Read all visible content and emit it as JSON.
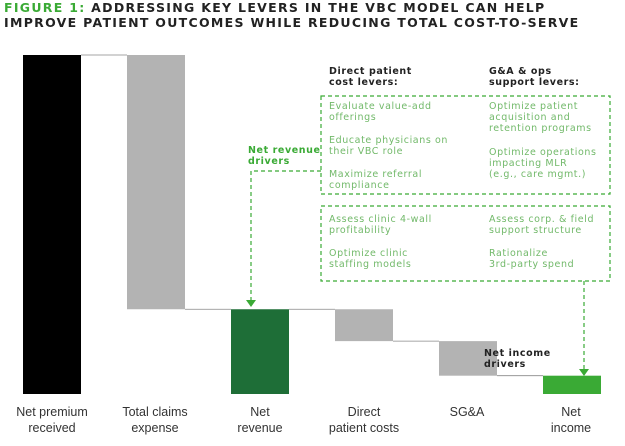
{
  "figure": {
    "label": "FIGURE 1:",
    "title": "ADDRESSING KEY LEVERS IN THE VBC MODEL CAN HELP IMPROVE PATIENT OUTCOMES WHILE REDUCING TOTAL COST-TO-SERVE"
  },
  "colors": {
    "title_accent": "#3aaa35",
    "total_bar": "#000000",
    "expense_bar": "#b3b3b3",
    "net_revenue_bar": "#1e6e37",
    "net_income_bar": "#3aaa35",
    "dashed_line": "#3aaa35",
    "lever_text": "#72b96a"
  },
  "levers": {
    "direct_patient": {
      "heading": "Direct patient\ncost levers:",
      "items": [
        "Evaluate value-add\nofferings",
        "Educate physicians on\ntheir VBC role",
        "Maximize referral\ncompliance",
        "Assess clinic 4-wall\nprofitability",
        "Optimize clinic\nstaffing models"
      ]
    },
    "ga_ops": {
      "heading": "G&A & ops\nsupport levers:",
      "items": [
        "Optimize patient\nacquisition and\nretention programs",
        "Optimize operations\nimpacting MLR\n(e.g., care mgmt.)",
        "Assess corp. & field\nsupport structure",
        "Rationalize\n3rd-party spend"
      ]
    },
    "net_revenue_drivers": "Net revenue\ndrivers",
    "net_income_drivers": "Net income\ndrivers"
  },
  "chart_data": {
    "type": "waterfall",
    "title": "ADDRESSING KEY LEVERS IN THE VBC MODEL CAN HELP IMPROVE PATIENT OUTCOMES WHILE REDUCING TOTAL COST-TO-SERVE",
    "categories": [
      "Net premium\nreceived",
      "Total claims\nexpense",
      "Net\nrevenue",
      "Direct\npatient costs",
      "SG&A",
      "Net\nincome"
    ],
    "values": [
      100,
      -75,
      25,
      -9.4,
      -10.2,
      5.4
    ],
    "kinds": [
      "total",
      "decrease",
      "total",
      "decrease",
      "decrease",
      "total"
    ],
    "y_axis_shown": false,
    "value_labels_shown": false,
    "note": "Illustrative; no axis or values printed. Values estimated as share of net premium (= 100)."
  }
}
